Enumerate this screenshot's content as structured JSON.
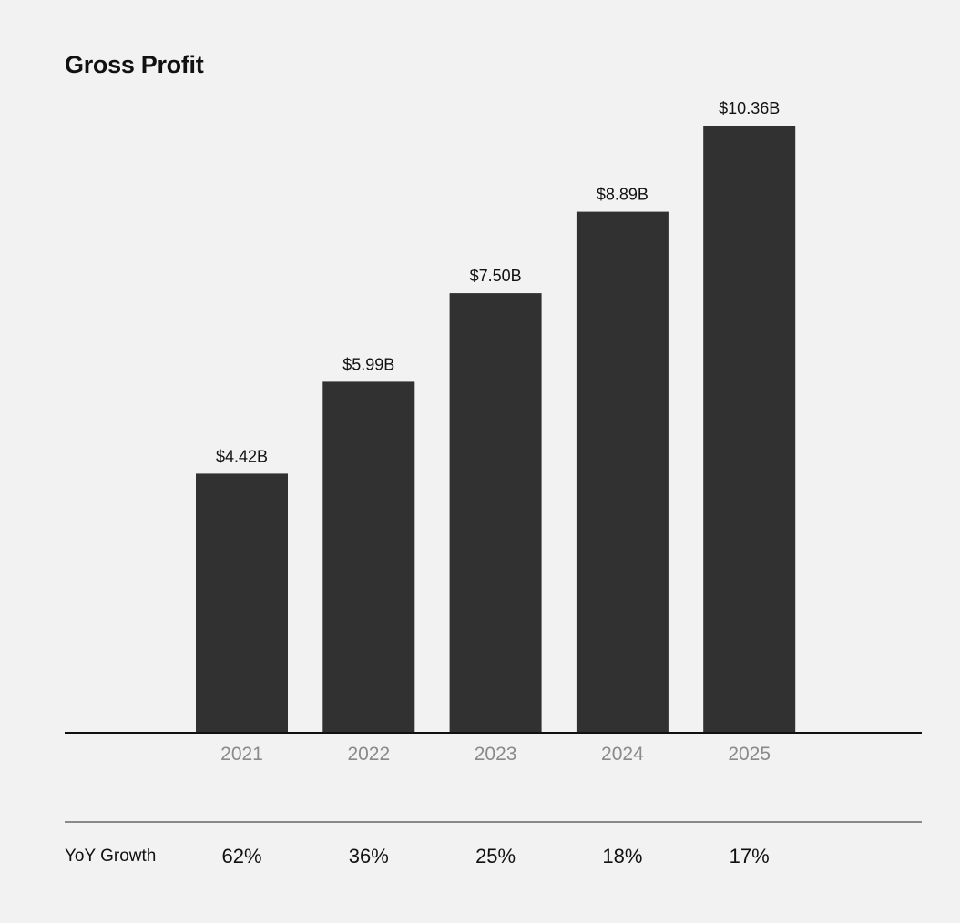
{
  "chart_data": {
    "type": "bar",
    "title": "Gross Profit",
    "xlabel": "",
    "ylabel": "",
    "categories": [
      "2021",
      "2022",
      "2023",
      "2024",
      "2025"
    ],
    "values": [
      4.42,
      5.99,
      7.5,
      8.89,
      10.36
    ],
    "value_labels": [
      "$4.42B",
      "$5.99B",
      "$7.50B",
      "$8.89B",
      "$10.36B"
    ],
    "unit": "B",
    "ylim": [
      0,
      10.36
    ],
    "grid": false,
    "bar_color": "#313131",
    "baseline_color": "#111111",
    "tick_label_color": "#8a8a8a"
  },
  "growth": {
    "label": "YoY Growth",
    "values": [
      "62%",
      "36%",
      "25%",
      "18%",
      "17%"
    ]
  }
}
